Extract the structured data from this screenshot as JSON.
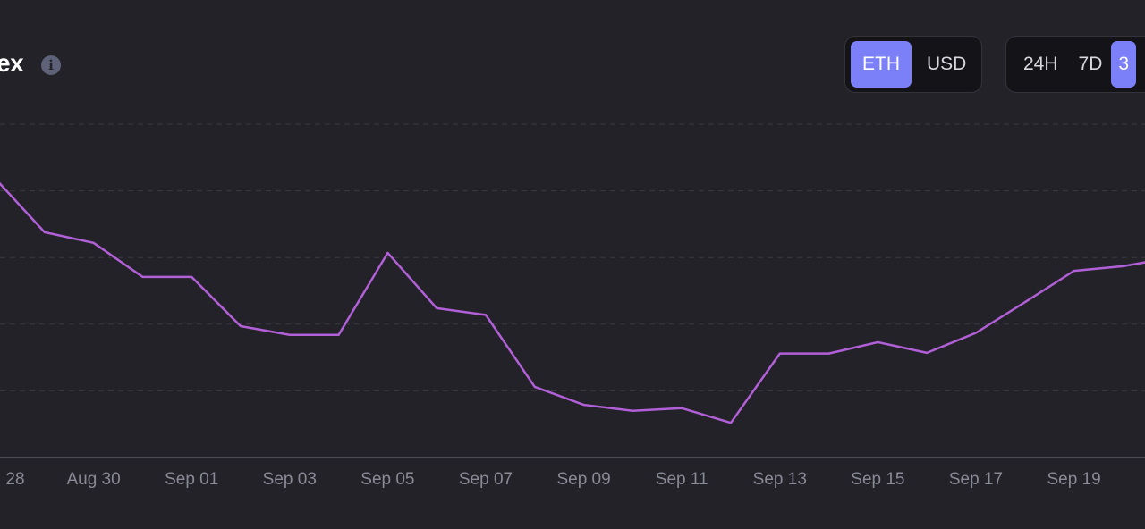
{
  "header": {
    "title": "ex",
    "info_icon": "info-icon"
  },
  "currency_toggle": {
    "options": [
      "ETH",
      "USD"
    ],
    "selected": "ETH"
  },
  "range_toggle": {
    "options": [
      "24H",
      "7D",
      "3"
    ],
    "selected": "3"
  },
  "colors": {
    "line": "#b260d8",
    "accent": "#7b80f8",
    "background": "#232228"
  },
  "chart_data": {
    "type": "line",
    "x": [
      "Aug 28",
      "Aug 29",
      "Aug 30",
      "Aug 31",
      "Sep 01",
      "Sep 02",
      "Sep 03",
      "Sep 04",
      "Sep 05",
      "Sep 06",
      "Sep 07",
      "Sep 08",
      "Sep 09",
      "Sep 10",
      "Sep 11",
      "Sep 12",
      "Sep 13",
      "Sep 14",
      "Sep 15",
      "Sep 16",
      "Sep 17",
      "Sep 18",
      "Sep 19",
      "Sep 20",
      "Sep 21"
    ],
    "values": [
      4.18,
      3.38,
      3.22,
      2.71,
      2.71,
      1.97,
      1.84,
      1.84,
      3.07,
      2.24,
      2.14,
      1.06,
      0.79,
      0.7,
      0.74,
      0.52,
      1.56,
      1.56,
      1.73,
      1.57,
      1.87,
      2.33,
      2.8,
      2.87,
      3.0
    ],
    "x_tick_labels": [
      "28",
      "Aug 30",
      "Sep 01",
      "Sep 03",
      "Sep 05",
      "Sep 07",
      "Sep 09",
      "Sep 11",
      "Sep 13",
      "Sep 15",
      "Sep 17",
      "Sep 19"
    ],
    "ylim": [
      0,
      5
    ],
    "grid": true,
    "xlabel": "",
    "ylabel": ""
  }
}
